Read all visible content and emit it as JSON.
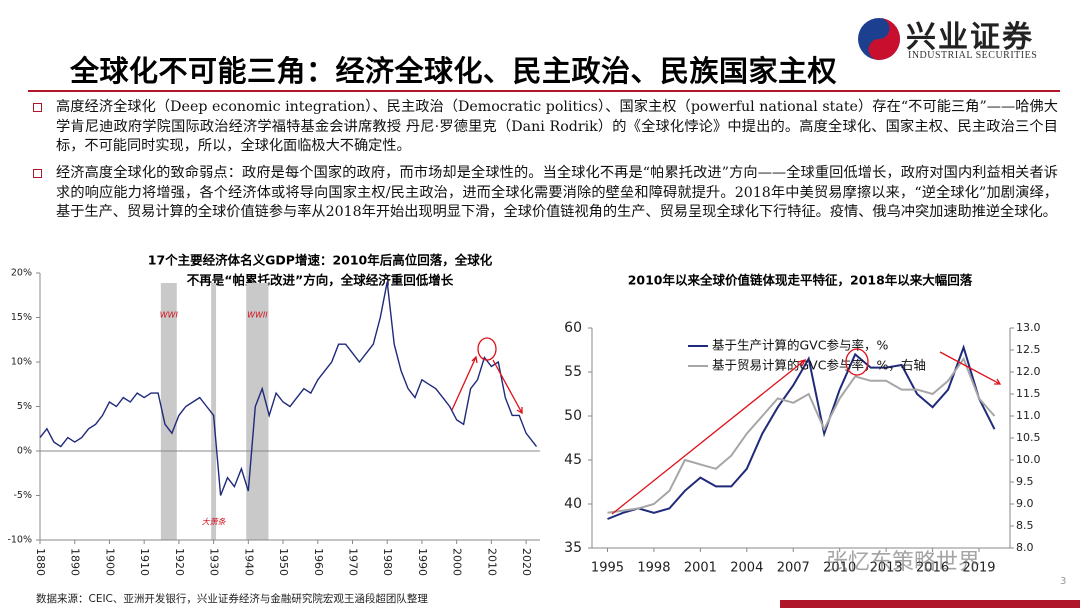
{
  "header": {
    "title": "全球化不可能三角：经济全球化、民主政治、民族国家主权",
    "logo": "兴业证券",
    "logo_en": "INDUSTRIAL SECURITIES"
  },
  "bullets": [
    "高度经济全球化（Deep economic integration）、民主政治（Democratic politics）、国家主权（powerful national state）存在“不可能三角”——哈佛大学肯尼迪政府学院国际政治经济学福特基金会讲席教授 丹尼·罗德里克（Dani Rodrik）的《全球化悖论》中提出的。高度全球化、国家主权、民主政治三个目标，不可能同时实现，所以，全球化面临极大不确定性。",
    "经济高度全球化的致命弱点：政府是每个国家的政府，而市场却是全球性的。当全球化不再是“帕累托改进”方向——全球重回低增长，政府对国内利益相关者诉求的响应能力将增强，各个经济体或将导向国家主权/民主政治，进而全球化需要消除的壁垒和障碍就提升。2018年中美贸易摩擦以来，“逆全球化”加剧演绎，基于生产、贸易计算的全球价值链参与率从2018年开始出现明显下滑，全球价值链视角的生产、贸易呈现全球化下行特征。疫情、俄乌冲突加速助推逆全球化。"
  ],
  "chart_data": [
    {
      "type": "line",
      "title": [
        "17个主要经济体名义GDP增速：2010年后高位回落，全球化",
        "不再是“帕累托改进”方向，全球经济重回低增长"
      ],
      "x": [
        1880,
        1882,
        1884,
        1886,
        1888,
        1890,
        1892,
        1894,
        1896,
        1898,
        1900,
        1902,
        1904,
        1906,
        1908,
        1910,
        1912,
        1914,
        1916,
        1918,
        1920,
        1922,
        1924,
        1926,
        1928,
        1930,
        1932,
        1934,
        1936,
        1938,
        1940,
        1942,
        1944,
        1946,
        1948,
        1950,
        1952,
        1954,
        1956,
        1958,
        1960,
        1962,
        1964,
        1966,
        1968,
        1970,
        1972,
        1974,
        1976,
        1978,
        1980,
        1982,
        1984,
        1986,
        1988,
        1990,
        1992,
        1994,
        1996,
        1998,
        2000,
        2002,
        2004,
        2006,
        2008,
        2010,
        2012,
        2014,
        2016,
        2018,
        2020,
        2023
      ],
      "series": [
        {
          "name": "GDP",
          "color": "#1f2a7a",
          "values": [
            1.5,
            2.5,
            1,
            0.5,
            1.5,
            1,
            1.5,
            2.5,
            3,
            4,
            5.5,
            5,
            6,
            5.5,
            6.5,
            6,
            6.5,
            6.5,
            3,
            2,
            4,
            5,
            5.5,
            6,
            5,
            4,
            -5,
            -3,
            -4,
            -2,
            -4.5,
            5,
            7,
            4,
            6.5,
            5.5,
            5,
            6,
            7,
            6.5,
            8,
            9,
            10,
            12,
            12,
            11,
            10,
            11,
            12,
            15,
            19,
            12,
            9,
            7,
            6,
            8,
            7.5,
            7,
            6,
            5,
            3.5,
            3,
            7,
            8,
            10.5,
            9.5,
            10,
            6,
            4,
            4,
            2,
            0.5
          ]
        }
      ],
      "xlim": [
        1880,
        2024
      ],
      "xticks": [
        1880,
        1890,
        1900,
        1910,
        1920,
        1930,
        1940,
        1950,
        1960,
        1970,
        1980,
        1990,
        2000,
        2010,
        2020
      ],
      "ylim": [
        -10,
        20
      ],
      "yticks": [
        {
          "value": -10,
          "label": "-10%"
        },
        {
          "value": -5,
          "label": "-5%"
        },
        {
          "value": 0,
          "label": "0%"
        },
        {
          "value": 5,
          "label": "5%"
        },
        {
          "value": 10,
          "label": "10%"
        },
        {
          "value": 15,
          "label": "15%"
        },
        {
          "value": 20,
          "label": "20%"
        }
      ],
      "shaded_regions": [
        {
          "label": "WWI",
          "x": [
            1914.8,
            1919.4
          ]
        },
        {
          "label": "大萧条",
          "x": [
            1929.3,
            1930.7
          ]
        },
        {
          "label": "WWII",
          "x": [
            1939.4,
            1945.8
          ]
        }
      ]
    },
    {
      "type": "line",
      "title": "2010年以来全球价值链体现走平特征，2018年以来大幅回落",
      "x": [
        1995,
        1996,
        1997,
        1998,
        1999,
        2000,
        2001,
        2002,
        2003,
        2004,
        2005,
        2006,
        2007,
        2008,
        2009,
        2010,
        2011,
        2012,
        2013,
        2014,
        2015,
        2016,
        2017,
        2018,
        2019,
        2020
      ],
      "series": [
        {
          "name": "基于生产计算的GVC参与率，%",
          "color": "#1f2a7a",
          "values": [
            38.3,
            39,
            39.5,
            39,
            39.5,
            41.5,
            43,
            42,
            42,
            44,
            48,
            51,
            53.5,
            56.5,
            48,
            53,
            57,
            55.5,
            55.5,
            55.8,
            52.5,
            51,
            53,
            57.8,
            52,
            48.5
          ]
        },
        {
          "name": "基于贸易计算的GVC参与率，%，右轴",
          "color": "#a6a6a6",
          "axis": "y2",
          "values": [
            8.8,
            8.85,
            8.9,
            9.0,
            9.3,
            10.0,
            9.9,
            9.8,
            10.1,
            10.6,
            11.0,
            11.4,
            11.3,
            11.5,
            10.7,
            11.4,
            11.9,
            11.8,
            11.8,
            11.6,
            11.6,
            11.5,
            11.8,
            12.3,
            11.4,
            11.0
          ]
        }
      ],
      "xlim": [
        1994,
        2021
      ],
      "xticks": [
        1995,
        1998,
        2001,
        2004,
        2007,
        2010,
        2013,
        2016,
        2019
      ],
      "ylim": [
        35,
        60
      ],
      "yticks": [
        35,
        40,
        45,
        50,
        55,
        60
      ],
      "y2lim": [
        8,
        13
      ],
      "y2ticks": [
        {
          "value": 8,
          "label": "8.0"
        },
        8.5,
        {
          "value": 9,
          "label": "9.0"
        },
        9.5,
        {
          "value": 10,
          "label": "10.0"
        },
        10.5,
        {
          "value": 11,
          "label": "11.0"
        },
        11.5,
        {
          "value": 12,
          "label": "12.0"
        },
        12.5,
        {
          "value": 13,
          "label": "13.0"
        }
      ]
    }
  ],
  "footer": {
    "source": "数据来源：CEIC、亚洲开发银行，兴业证券经济与金融研究院宏观王涵段超团队整理",
    "page": "3",
    "watermark": "张忆东策略世界"
  }
}
